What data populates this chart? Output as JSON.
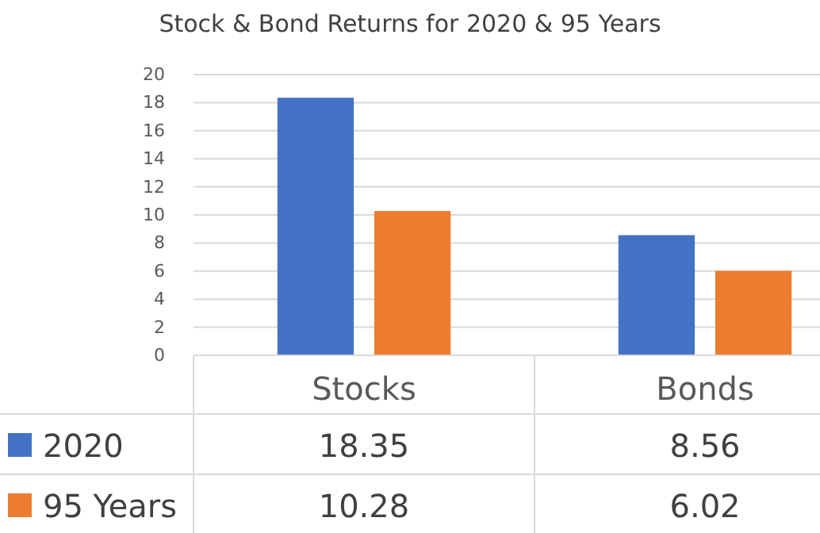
{
  "chart_data": {
    "type": "bar",
    "title": "Stock & Bond Returns for 2020 & 95 Years",
    "categories": [
      "Stocks",
      "Bonds"
    ],
    "series": [
      {
        "name": "2020",
        "color": "#4472c4",
        "values": [
          18.35,
          8.56
        ]
      },
      {
        "name": "95 Years",
        "color": "#ed7d31",
        "values": [
          10.28,
          6.02
        ]
      }
    ],
    "ylim": [
      0,
      20
    ],
    "yticks": [
      0,
      2,
      4,
      6,
      8,
      10,
      12,
      14,
      16,
      18,
      20
    ],
    "grid": "y",
    "data_labels": true,
    "legend": "bottom"
  }
}
